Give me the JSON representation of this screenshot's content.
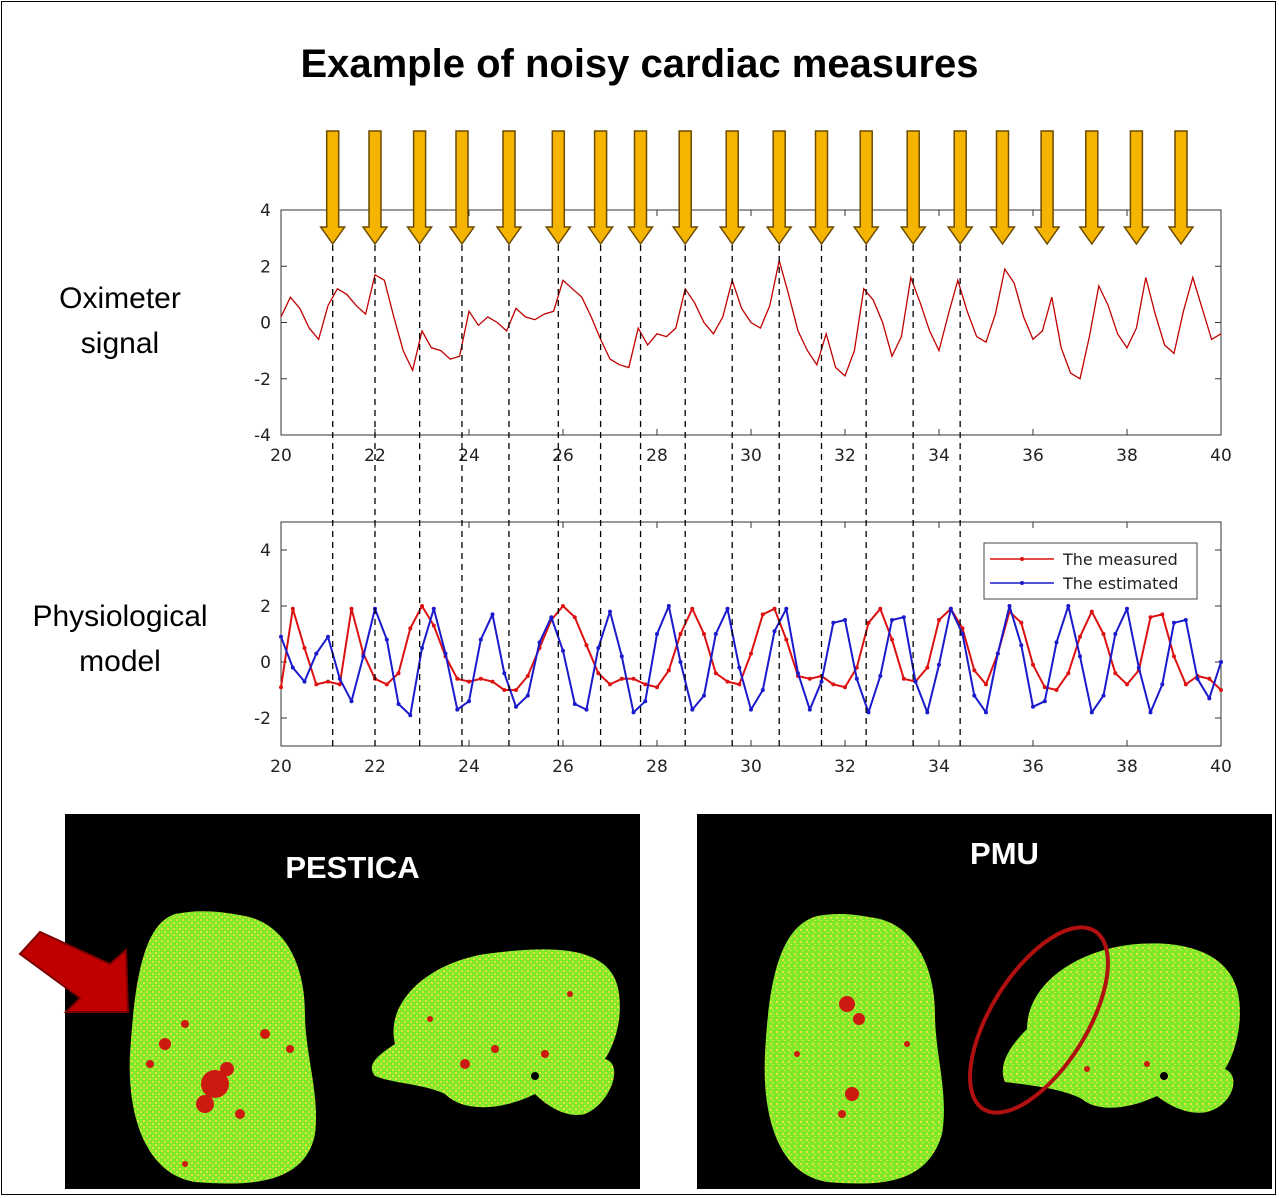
{
  "title": "Example of noisy cardiac measures",
  "labels": {
    "oximeter": [
      "Oximeter",
      "signal"
    ],
    "physio": [
      "Physiological",
      "model"
    ]
  },
  "colors": {
    "arrow_fill": "#f5b400",
    "arrow_stroke": "#6a4b00",
    "oximeter_line": "#c00000",
    "measured": "#dd1111",
    "estimated": "#1a1acc",
    "panel_bg": "#000000",
    "brain_green": "#7fe82a",
    "brain_yellow": "#e8e23a",
    "brain_red": "#cc1a10"
  },
  "panels": {
    "left_label": "PESTICA",
    "right_label": "PMU"
  },
  "chart_data": [
    {
      "type": "line",
      "name": "oximeter",
      "xlim": [
        20,
        40
      ],
      "ylim": [
        -4,
        4
      ],
      "xticks": [
        20,
        22,
        24,
        26,
        28,
        30,
        32,
        34,
        36,
        38,
        40
      ],
      "yticks": [
        -4,
        -2,
        0,
        2,
        4
      ],
      "x": [
        20.0,
        20.2,
        20.4,
        20.6,
        20.8,
        21.0,
        21.2,
        21.4,
        21.6,
        21.8,
        22.0,
        22.2,
        22.4,
        22.6,
        22.8,
        23.0,
        23.2,
        23.4,
        23.6,
        23.8,
        24.0,
        24.2,
        24.4,
        24.6,
        24.8,
        25.0,
        25.2,
        25.4,
        25.6,
        25.8,
        26.0,
        26.2,
        26.4,
        26.6,
        26.8,
        27.0,
        27.2,
        27.4,
        27.6,
        27.8,
        28.0,
        28.2,
        28.4,
        28.6,
        28.8,
        29.0,
        29.2,
        29.4,
        29.6,
        29.8,
        30.0,
        30.2,
        30.4,
        30.6,
        30.8,
        31.0,
        31.2,
        31.4,
        31.6,
        31.8,
        32.0,
        32.2,
        32.4,
        32.6,
        32.8,
        33.0,
        33.2,
        33.4,
        33.6,
        33.8,
        34.0,
        34.2,
        34.4,
        34.6,
        34.8,
        35.0,
        35.2,
        35.4,
        35.6,
        35.8,
        36.0,
        36.2,
        36.4,
        36.6,
        36.8,
        37.0,
        37.2,
        37.4,
        37.6,
        37.8,
        38.0,
        38.2,
        38.4,
        38.6,
        38.8,
        39.0,
        39.2,
        39.4,
        39.6,
        39.8,
        40.0
      ],
      "y": [
        0.2,
        0.9,
        0.5,
        -0.2,
        -0.6,
        0.6,
        1.2,
        1.0,
        0.6,
        0.3,
        1.7,
        1.5,
        0.2,
        -1.0,
        -1.7,
        -0.3,
        -0.9,
        -1.0,
        -1.3,
        -1.2,
        0.4,
        -0.1,
        0.2,
        0.0,
        -0.3,
        0.5,
        0.2,
        0.1,
        0.3,
        0.4,
        1.5,
        1.2,
        0.9,
        0.2,
        -0.6,
        -1.3,
        -1.5,
        -1.6,
        -0.2,
        -0.8,
        -0.4,
        -0.5,
        -0.2,
        1.2,
        0.7,
        0.0,
        -0.4,
        0.2,
        1.5,
        0.5,
        0.0,
        -0.2,
        0.6,
        2.2,
        1.0,
        -0.3,
        -1.0,
        -1.5,
        -0.4,
        -1.6,
        -1.9,
        -1.0,
        1.2,
        0.8,
        0.0,
        -1.2,
        -0.5,
        1.6,
        0.7,
        -0.3,
        -1.0,
        0.3,
        1.5,
        0.4,
        -0.5,
        -0.7,
        0.3,
        1.9,
        1.4,
        0.2,
        -0.6,
        -0.3,
        0.9,
        -0.9,
        -1.8,
        -2.0,
        -0.5,
        1.3,
        0.6,
        -0.4,
        -0.9,
        -0.2,
        1.6,
        0.3,
        -0.8,
        -1.1,
        0.4,
        1.6,
        0.5,
        -0.6,
        -0.4
      ]
    },
    {
      "type": "line",
      "name": "physiological-model",
      "xlim": [
        20,
        40
      ],
      "ylim": [
        -3,
        5
      ],
      "xticks": [
        20,
        22,
        24,
        26,
        28,
        30,
        32,
        34,
        36,
        38,
        40
      ],
      "yticks": [
        -2,
        0,
        2,
        4
      ],
      "legend": "top-right",
      "series": [
        {
          "name": "The measured",
          "x": [
            20.0,
            20.25,
            20.5,
            20.75,
            21.0,
            21.25,
            21.5,
            21.75,
            22.0,
            22.25,
            22.5,
            22.75,
            23.0,
            23.25,
            23.5,
            23.75,
            24.0,
            24.25,
            24.5,
            24.75,
            25.0,
            25.25,
            25.5,
            25.75,
            26.0,
            26.25,
            26.5,
            26.75,
            27.0,
            27.25,
            27.5,
            27.75,
            28.0,
            28.25,
            28.5,
            28.75,
            29.0,
            29.25,
            29.5,
            29.75,
            30.0,
            30.25,
            30.5,
            30.75,
            31.0,
            31.25,
            31.5,
            31.75,
            32.0,
            32.25,
            32.5,
            32.75,
            33.0,
            33.25,
            33.5,
            33.75,
            34.0,
            34.25,
            34.5,
            34.75,
            35.0,
            35.25,
            35.5,
            35.75,
            36.0,
            36.25,
            36.5,
            36.75,
            37.0,
            37.25,
            37.5,
            37.75,
            38.0,
            38.25,
            38.5,
            38.75,
            39.0,
            39.25,
            39.5,
            39.75,
            40.0
          ],
          "y": [
            -0.9,
            1.9,
            0.5,
            -0.8,
            -0.7,
            -0.8,
            1.9,
            0.3,
            -0.6,
            -0.8,
            -0.4,
            1.2,
            2.0,
            1.3,
            0.2,
            -0.6,
            -0.7,
            -0.6,
            -0.7,
            -1.0,
            -1.0,
            -0.5,
            0.5,
            1.5,
            2.0,
            1.6,
            0.6,
            -0.4,
            -0.8,
            -0.6,
            -0.6,
            -0.8,
            -0.9,
            -0.3,
            1.0,
            1.9,
            1.0,
            -0.4,
            -0.7,
            -0.8,
            0.3,
            1.7,
            1.9,
            0.8,
            -0.5,
            -0.6,
            -0.5,
            -0.8,
            -0.9,
            -0.2,
            1.4,
            1.9,
            0.8,
            -0.6,
            -0.7,
            -0.2,
            1.5,
            1.9,
            1.2,
            -0.3,
            -0.8,
            0.3,
            1.8,
            1.4,
            -0.1,
            -0.9,
            -1.0,
            -0.4,
            0.9,
            1.8,
            1.0,
            -0.4,
            -0.8,
            -0.3,
            1.6,
            1.7,
            0.2,
            -0.8,
            -0.5,
            -0.6,
            -1.0
          ]
        },
        {
          "name": "The estimated",
          "x": [
            20.0,
            20.25,
            20.5,
            20.75,
            21.0,
            21.25,
            21.5,
            21.75,
            22.0,
            22.25,
            22.5,
            22.75,
            23.0,
            23.25,
            23.5,
            23.75,
            24.0,
            24.25,
            24.5,
            24.75,
            25.0,
            25.25,
            25.5,
            25.75,
            26.0,
            26.25,
            26.5,
            26.75,
            27.0,
            27.25,
            27.5,
            27.75,
            28.0,
            28.25,
            28.5,
            28.75,
            29.0,
            29.25,
            29.5,
            29.75,
            30.0,
            30.25,
            30.5,
            30.75,
            31.0,
            31.25,
            31.5,
            31.75,
            32.0,
            32.25,
            32.5,
            32.75,
            33.0,
            33.25,
            33.5,
            33.75,
            34.0,
            34.25,
            34.5,
            34.75,
            35.0,
            35.25,
            35.5,
            35.75,
            36.0,
            36.25,
            36.5,
            36.75,
            37.0,
            37.25,
            37.5,
            37.75,
            38.0,
            38.25,
            38.5,
            38.75,
            39.0,
            39.25,
            39.5,
            39.75,
            40.0
          ],
          "y": [
            0.9,
            -0.2,
            -0.7,
            0.3,
            0.9,
            -0.6,
            -1.4,
            0.2,
            1.9,
            0.8,
            -1.5,
            -1.9,
            0.5,
            1.9,
            0.3,
            -1.7,
            -1.4,
            0.8,
            1.7,
            -0.4,
            -1.6,
            -1.2,
            0.7,
            1.6,
            0.4,
            -1.5,
            -1.7,
            0.5,
            1.8,
            0.2,
            -1.8,
            -1.4,
            1.0,
            2.0,
            0.0,
            -1.7,
            -1.2,
            1.0,
            1.9,
            -0.2,
            -1.7,
            -1.0,
            1.1,
            1.9,
            -0.4,
            -1.7,
            -0.7,
            1.4,
            1.5,
            -0.6,
            -1.8,
            -0.5,
            1.5,
            1.6,
            -0.7,
            -1.8,
            -0.1,
            1.9,
            1.0,
            -1.2,
            -1.8,
            0.3,
            2.0,
            0.6,
            -1.6,
            -1.4,
            0.7,
            2.0,
            0.2,
            -1.8,
            -1.2,
            1.0,
            1.9,
            -0.2,
            -1.8,
            -0.8,
            1.4,
            1.5,
            -0.6,
            -1.3,
            0.0
          ]
        }
      ]
    }
  ],
  "markers": {
    "arrow_times": [
      21.1,
      22.0,
      22.95,
      23.85,
      24.85,
      25.9,
      26.8,
      27.65,
      28.6,
      29.6,
      30.6,
      31.5,
      32.45,
      33.45,
      34.45,
      35.35,
      36.3,
      37.25,
      38.2,
      39.15
    ],
    "dashed_times": [
      21.1,
      22.0,
      22.95,
      23.85,
      24.85,
      25.9,
      26.8,
      27.65,
      28.6,
      29.6,
      30.6,
      31.5,
      32.45,
      33.45,
      34.45
    ]
  }
}
